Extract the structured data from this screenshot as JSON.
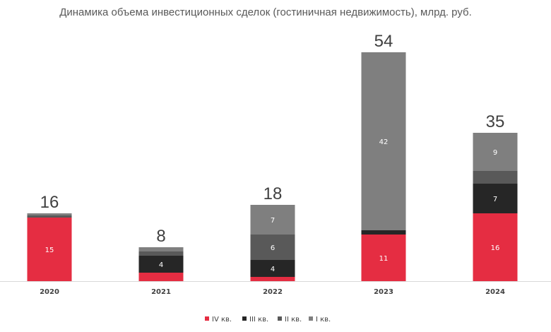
{
  "chart_data": {
    "type": "bar",
    "stacked": true,
    "title": "Динамика объема инвестиционных сделок (гостиничная недвижимость), млрд. руб.",
    "categories": [
      "2020",
      "2021",
      "2022",
      "2023",
      "2024"
    ],
    "totals": [
      "16",
      "8",
      "18",
      "54",
      "35"
    ],
    "series": [
      {
        "name": "IV кв.",
        "color": "#e52d42",
        "values": [
          15,
          2,
          1,
          11,
          16
        ],
        "labels": [
          "15",
          "",
          "",
          "11",
          "16"
        ]
      },
      {
        "name": "III кв.",
        "color": "#262626",
        "values": [
          0,
          4,
          4,
          1,
          7
        ],
        "labels": [
          "",
          "4",
          "4",
          "",
          "7"
        ]
      },
      {
        "name": "II кв.",
        "color": "#595959",
        "values": [
          0.5,
          1,
          6,
          0,
          3
        ],
        "labels": [
          "",
          "",
          "6",
          "",
          ""
        ]
      },
      {
        "name": "I кв.",
        "color": "#7f7f7f",
        "values": [
          0.5,
          1,
          7,
          42,
          9
        ],
        "labels": [
          "",
          "",
          "7",
          "42",
          "9"
        ]
      }
    ],
    "ylim": [
      0,
      60
    ],
    "grid": false,
    "legend": "bottom"
  }
}
